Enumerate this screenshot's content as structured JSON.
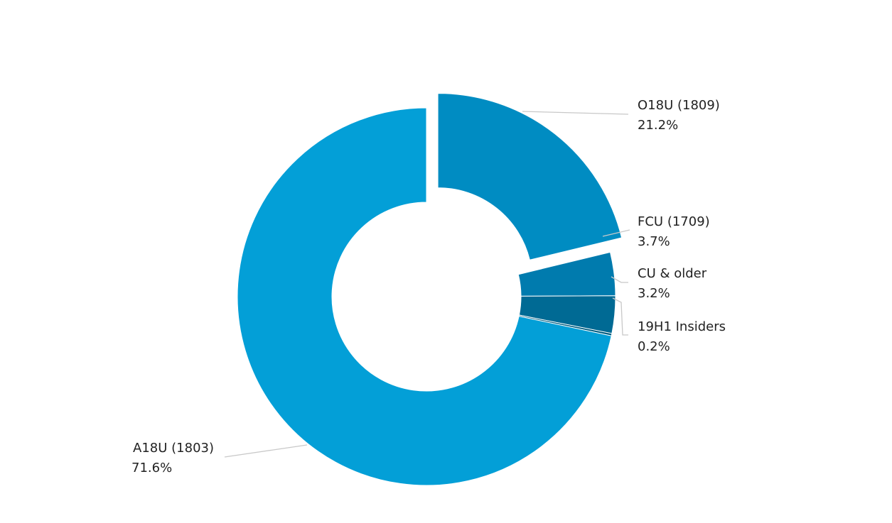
{
  "chart_data": {
    "type": "pie",
    "variant": "donut",
    "slices": [
      {
        "name": "O18U (1809)",
        "value": 21.2,
        "label": "21.2%",
        "color": "#008CC2",
        "exploded": true
      },
      {
        "name": "FCU (1709)",
        "value": 3.7,
        "label": "3.7%",
        "color": "#007BAE",
        "exploded": false
      },
      {
        "name": "CU & older",
        "value": 3.2,
        "label": "3.2%",
        "color": "#006A94",
        "exploded": false
      },
      {
        "name": "19H1 Insiders",
        "value": 0.2,
        "label": "0.2%",
        "color": "#005C80",
        "exploded": false
      },
      {
        "name": "A18U (1803)",
        "value": 71.6,
        "label": "71.6%",
        "color": "#039FD7",
        "exploded": false
      }
    ],
    "legend": "none",
    "leader_line_color": "#C8C8C8"
  }
}
